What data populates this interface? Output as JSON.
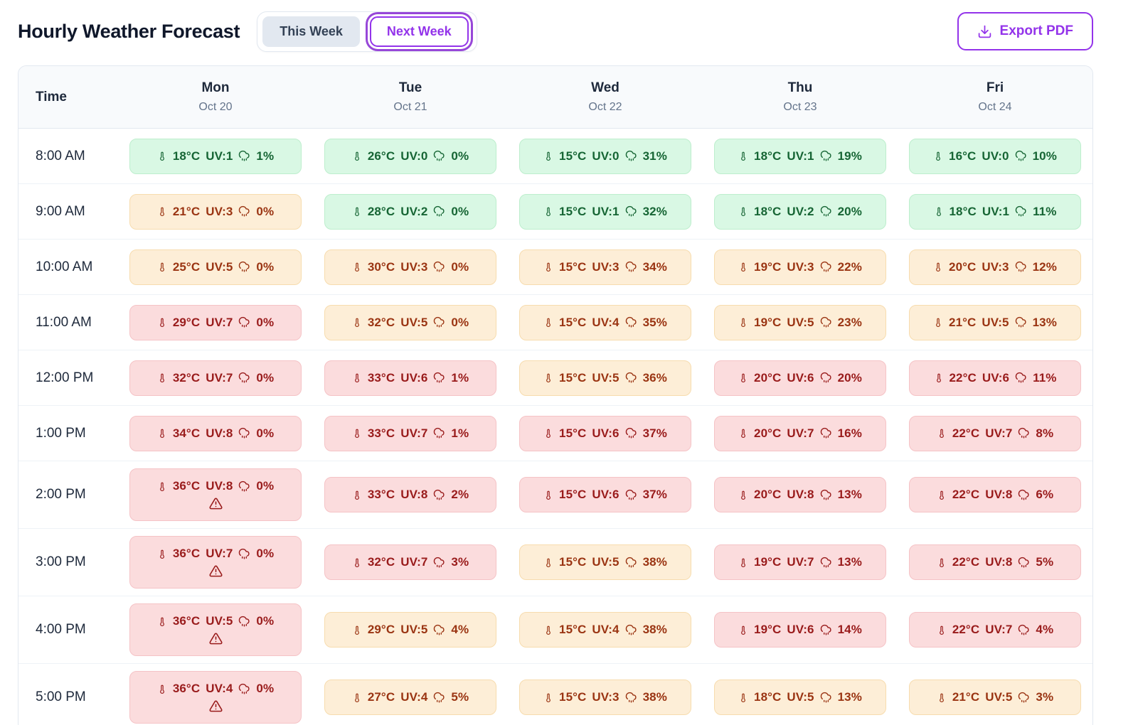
{
  "header": {
    "title": "Hourly Weather Forecast",
    "tabs": [
      {
        "label": "This Week",
        "active": false
      },
      {
        "label": "Next Week",
        "active": true
      }
    ],
    "export_label": "Export PDF"
  },
  "icons": {
    "temperature": "thermometer-icon",
    "precipitation": "rain-cloud-icon",
    "heat_warning": "warning-triangle-icon",
    "export": "download-icon"
  },
  "colors": {
    "accent_purple": "#9333ea",
    "level_green": {
      "bg": "#d9f8e4",
      "border": "#bdeecd",
      "text": "#166534"
    },
    "level_orange": {
      "bg": "#fdeed7",
      "border": "#f7dcae",
      "text": "#9a3412"
    },
    "level_red": {
      "bg": "#fbdcdd",
      "border": "#f5c3c6",
      "text": "#991b1b"
    }
  },
  "table": {
    "time_header": "Time",
    "days": [
      {
        "name": "Mon",
        "date": "Oct 20"
      },
      {
        "name": "Tue",
        "date": "Oct 21"
      },
      {
        "name": "Wed",
        "date": "Oct 22"
      },
      {
        "name": "Thu",
        "date": "Oct 23"
      },
      {
        "name": "Fri",
        "date": "Oct 24"
      }
    ],
    "rows": [
      {
        "time": "8:00 AM",
        "cells": [
          {
            "temp": "18°C",
            "uv": "UV:1",
            "precip": "1%",
            "level": "green",
            "warning": false
          },
          {
            "temp": "26°C",
            "uv": "UV:0",
            "precip": "0%",
            "level": "green",
            "warning": false
          },
          {
            "temp": "15°C",
            "uv": "UV:0",
            "precip": "31%",
            "level": "green",
            "warning": false
          },
          {
            "temp": "18°C",
            "uv": "UV:1",
            "precip": "19%",
            "level": "green",
            "warning": false
          },
          {
            "temp": "16°C",
            "uv": "UV:0",
            "precip": "10%",
            "level": "green",
            "warning": false
          }
        ]
      },
      {
        "time": "9:00 AM",
        "cells": [
          {
            "temp": "21°C",
            "uv": "UV:3",
            "precip": "0%",
            "level": "orange",
            "warning": false
          },
          {
            "temp": "28°C",
            "uv": "UV:2",
            "precip": "0%",
            "level": "green",
            "warning": false
          },
          {
            "temp": "15°C",
            "uv": "UV:1",
            "precip": "32%",
            "level": "green",
            "warning": false
          },
          {
            "temp": "18°C",
            "uv": "UV:2",
            "precip": "20%",
            "level": "green",
            "warning": false
          },
          {
            "temp": "18°C",
            "uv": "UV:1",
            "precip": "11%",
            "level": "green",
            "warning": false
          }
        ]
      },
      {
        "time": "10:00 AM",
        "cells": [
          {
            "temp": "25°C",
            "uv": "UV:5",
            "precip": "0%",
            "level": "orange",
            "warning": false
          },
          {
            "temp": "30°C",
            "uv": "UV:3",
            "precip": "0%",
            "level": "orange",
            "warning": false
          },
          {
            "temp": "15°C",
            "uv": "UV:3",
            "precip": "34%",
            "level": "orange",
            "warning": false
          },
          {
            "temp": "19°C",
            "uv": "UV:3",
            "precip": "22%",
            "level": "orange",
            "warning": false
          },
          {
            "temp": "20°C",
            "uv": "UV:3",
            "precip": "12%",
            "level": "orange",
            "warning": false
          }
        ]
      },
      {
        "time": "11:00 AM",
        "cells": [
          {
            "temp": "29°C",
            "uv": "UV:7",
            "precip": "0%",
            "level": "red",
            "warning": false
          },
          {
            "temp": "32°C",
            "uv": "UV:5",
            "precip": "0%",
            "level": "orange",
            "warning": false
          },
          {
            "temp": "15°C",
            "uv": "UV:4",
            "precip": "35%",
            "level": "orange",
            "warning": false
          },
          {
            "temp": "19°C",
            "uv": "UV:5",
            "precip": "23%",
            "level": "orange",
            "warning": false
          },
          {
            "temp": "21°C",
            "uv": "UV:5",
            "precip": "13%",
            "level": "orange",
            "warning": false
          }
        ]
      },
      {
        "time": "12:00 PM",
        "cells": [
          {
            "temp": "32°C",
            "uv": "UV:7",
            "precip": "0%",
            "level": "red",
            "warning": false
          },
          {
            "temp": "33°C",
            "uv": "UV:6",
            "precip": "1%",
            "level": "red",
            "warning": false
          },
          {
            "temp": "15°C",
            "uv": "UV:5",
            "precip": "36%",
            "level": "orange",
            "warning": false
          },
          {
            "temp": "20°C",
            "uv": "UV:6",
            "precip": "20%",
            "level": "red",
            "warning": false
          },
          {
            "temp": "22°C",
            "uv": "UV:6",
            "precip": "11%",
            "level": "red",
            "warning": false
          }
        ]
      },
      {
        "time": "1:00 PM",
        "cells": [
          {
            "temp": "34°C",
            "uv": "UV:8",
            "precip": "0%",
            "level": "red",
            "warning": false
          },
          {
            "temp": "33°C",
            "uv": "UV:7",
            "precip": "1%",
            "level": "red",
            "warning": false
          },
          {
            "temp": "15°C",
            "uv": "UV:6",
            "precip": "37%",
            "level": "red",
            "warning": false
          },
          {
            "temp": "20°C",
            "uv": "UV:7",
            "precip": "16%",
            "level": "red",
            "warning": false
          },
          {
            "temp": "22°C",
            "uv": "UV:7",
            "precip": "8%",
            "level": "red",
            "warning": false
          }
        ]
      },
      {
        "time": "2:00 PM",
        "cells": [
          {
            "temp": "36°C",
            "uv": "UV:8",
            "precip": "0%",
            "level": "red",
            "warning": true
          },
          {
            "temp": "33°C",
            "uv": "UV:8",
            "precip": "2%",
            "level": "red",
            "warning": false
          },
          {
            "temp": "15°C",
            "uv": "UV:6",
            "precip": "37%",
            "level": "red",
            "warning": false
          },
          {
            "temp": "20°C",
            "uv": "UV:8",
            "precip": "13%",
            "level": "red",
            "warning": false
          },
          {
            "temp": "22°C",
            "uv": "UV:8",
            "precip": "6%",
            "level": "red",
            "warning": false
          }
        ]
      },
      {
        "time": "3:00 PM",
        "cells": [
          {
            "temp": "36°C",
            "uv": "UV:7",
            "precip": "0%",
            "level": "red",
            "warning": true
          },
          {
            "temp": "32°C",
            "uv": "UV:7",
            "precip": "3%",
            "level": "red",
            "warning": false
          },
          {
            "temp": "15°C",
            "uv": "UV:5",
            "precip": "38%",
            "level": "orange",
            "warning": false
          },
          {
            "temp": "19°C",
            "uv": "UV:7",
            "precip": "13%",
            "level": "red",
            "warning": false
          },
          {
            "temp": "22°C",
            "uv": "UV:8",
            "precip": "5%",
            "level": "red",
            "warning": false
          }
        ]
      },
      {
        "time": "4:00 PM",
        "cells": [
          {
            "temp": "36°C",
            "uv": "UV:5",
            "precip": "0%",
            "level": "red",
            "warning": true
          },
          {
            "temp": "29°C",
            "uv": "UV:5",
            "precip": "4%",
            "level": "orange",
            "warning": false
          },
          {
            "temp": "15°C",
            "uv": "UV:4",
            "precip": "38%",
            "level": "orange",
            "warning": false
          },
          {
            "temp": "19°C",
            "uv": "UV:6",
            "precip": "14%",
            "level": "red",
            "warning": false
          },
          {
            "temp": "22°C",
            "uv": "UV:7",
            "precip": "4%",
            "level": "red",
            "warning": false
          }
        ]
      },
      {
        "time": "5:00 PM",
        "cells": [
          {
            "temp": "36°C",
            "uv": "UV:4",
            "precip": "0%",
            "level": "red",
            "warning": true
          },
          {
            "temp": "27°C",
            "uv": "UV:4",
            "precip": "5%",
            "level": "orange",
            "warning": false
          },
          {
            "temp": "15°C",
            "uv": "UV:3",
            "precip": "38%",
            "level": "orange",
            "warning": false
          },
          {
            "temp": "18°C",
            "uv": "UV:5",
            "precip": "13%",
            "level": "orange",
            "warning": false
          },
          {
            "temp": "21°C",
            "uv": "UV:5",
            "precip": "3%",
            "level": "orange",
            "warning": false
          }
        ]
      }
    ]
  }
}
